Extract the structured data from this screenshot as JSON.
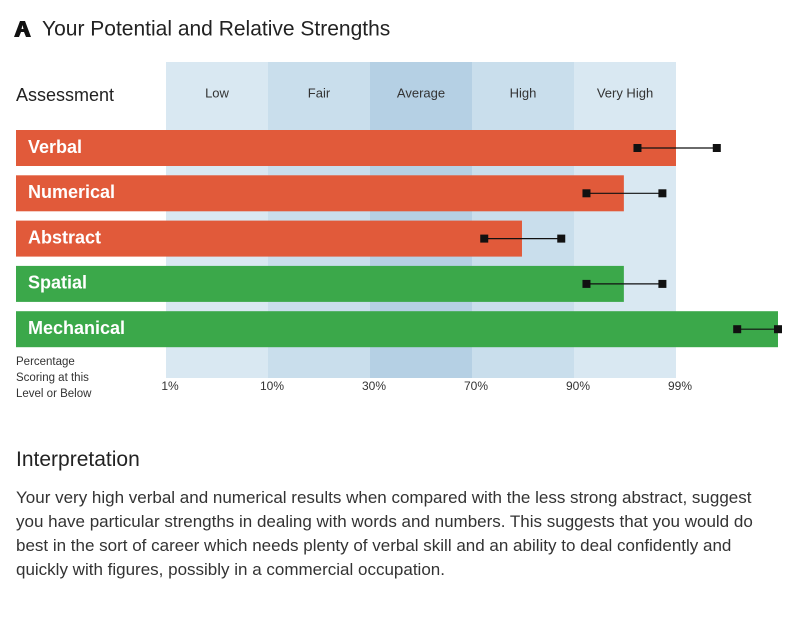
{
  "chart_data": {
    "type": "bar",
    "title": "Your Potential and Relative Strengths",
    "header_label": "Assessment",
    "x_label": "Percentage Scoring at this Level or Below",
    "bands": [
      "Low",
      "Fair",
      "Average",
      "High",
      "Very High"
    ],
    "band_colors": [
      "#d9e8f2",
      "#c9deec",
      "#b5d0e4",
      "#c9deec",
      "#d9e8f2"
    ],
    "categories": [
      "Verbal",
      "Numerical",
      "Abstract",
      "Spatial",
      "Mechanical"
    ],
    "values": [
      99,
      94.4,
      79.8,
      94.4,
      100
    ],
    "range_low": [
      95.6,
      91.1,
      72.4,
      91.1,
      99.6
    ],
    "range_high": [
      99.4,
      97.8,
      87.5,
      97.8,
      100
    ],
    "colors": [
      "#e15a3a",
      "#e15a3a",
      "#e15a3a",
      "#3ba84a",
      "#3ba84a"
    ],
    "xlim": [
      1,
      100
    ],
    "xticks": [
      {
        "value": 1,
        "label": "1%"
      },
      {
        "value": 10,
        "label": "10%"
      },
      {
        "value": 30,
        "label": "30%"
      },
      {
        "value": 70,
        "label": "70%"
      },
      {
        "value": 90,
        "label": "90%"
      },
      {
        "value": 99,
        "label": "99%"
      }
    ]
  },
  "interpretation": {
    "title": "Interpretation",
    "text": "Your very high verbal and numerical results when compared with the less strong abstract, suggest you have particular strengths in dealing with words and numbers. This suggests that you would do best in the sort of career which needs plenty of verbal skill and an ability to deal confidently and quickly with figures, possibly in a commercial occupation."
  }
}
